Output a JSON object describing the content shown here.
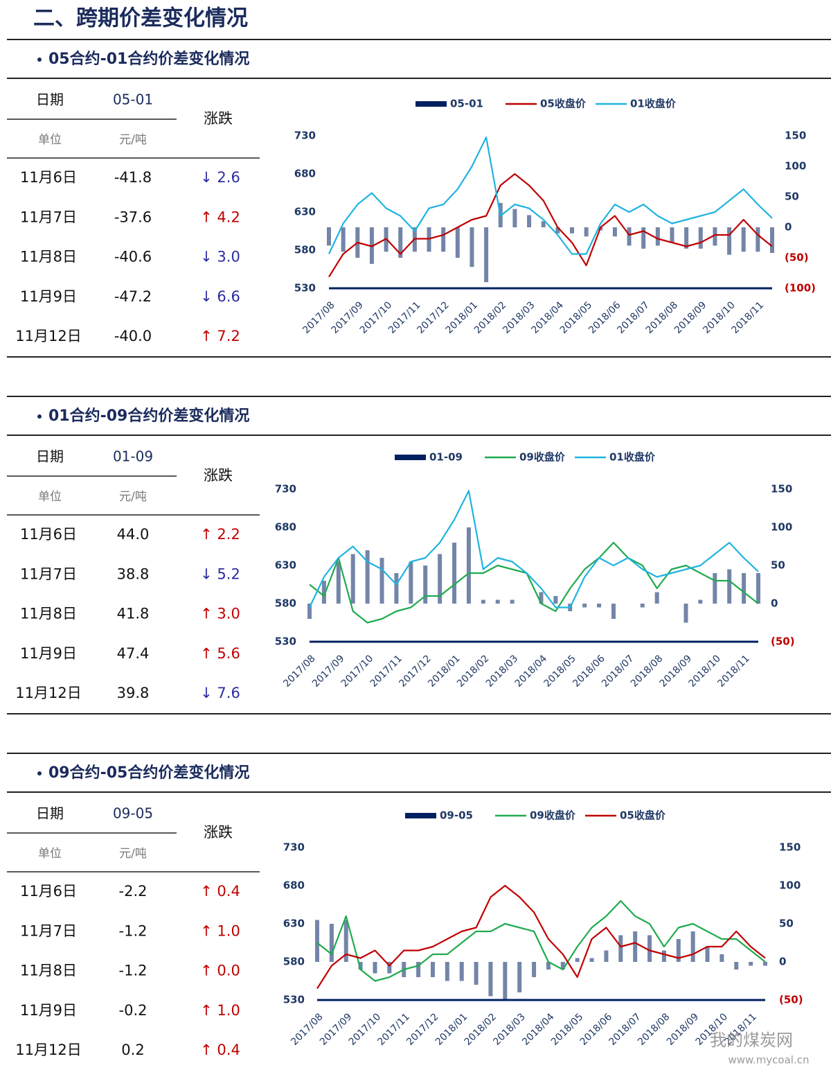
{
  "header": {
    "title": "二、跨期价差变化情况"
  },
  "sections": [
    {
      "title": "05合约-01合约价差变化情况",
      "table": {
        "header": [
          "日期",
          "05-01",
          "涨跌"
        ],
        "units": [
          "单位",
          "元/吨"
        ],
        "rows": [
          {
            "date": "11月6日",
            "value": "-41.8",
            "change": "↓ 2.6",
            "color": "#2b2ba0"
          },
          {
            "date": "11月7日",
            "value": "-37.6",
            "change": "↑ 4.2",
            "color": "#c00000"
          },
          {
            "date": "11月8日",
            "value": "-40.6",
            "change": "↓ 3.0",
            "color": "#2b2ba0"
          },
          {
            "date": "11月9日",
            "value": "-47.2",
            "change": "↓ 6.6",
            "color": "#2b2ba0"
          },
          {
            "date": "11月12日",
            "value": "-40.0",
            "change": "↑ 7.2",
            "color": "#c00000"
          }
        ]
      },
      "chart": {
        "type": "combo",
        "categories": [
          "2017/08",
          null,
          "2017/09",
          null,
          "2017/10",
          null,
          "2017/11",
          null,
          "2017/12",
          null,
          "2018/01",
          null,
          "2018/02",
          null,
          "2018/03",
          null,
          "2018/04",
          null,
          "2018/05",
          null,
          "2018/06",
          null,
          "2018/07",
          null,
          "2018/08",
          null,
          "2018/09",
          null,
          "2018/10",
          null,
          "2018/11",
          null
        ],
        "ylim": [
          530,
          730
        ],
        "yticks": [
          530,
          580,
          630,
          680,
          730
        ],
        "y2lim": [
          -100,
          150
        ],
        "y2ticks": [
          {
            "value": -100,
            "label": "(100)",
            "color": "#c00000"
          },
          {
            "value": -50,
            "label": "(50)",
            "color": "#c00000"
          },
          {
            "value": 0,
            "label": "0",
            "color": "#1f3864"
          },
          {
            "value": 50,
            "label": "50",
            "color": "#1f3864"
          },
          {
            "value": 100,
            "label": "100",
            "color": "#1f3864"
          },
          {
            "value": 150,
            "label": "150",
            "color": "#1f3864"
          }
        ],
        "series": [
          {
            "name": "05-01",
            "type": "bar",
            "axis": "y2",
            "color": "#002060",
            "values": [
              -30,
              -40,
              -50,
              -60,
              -40,
              -50,
              -40,
              -40,
              -40,
              -50,
              -65,
              -90,
              40,
              30,
              20,
              10,
              -10,
              -10,
              -15,
              -5,
              -15,
              -30,
              -35,
              -30,
              -25,
              -35,
              -35,
              -30,
              -45,
              -40,
              -40,
              -42
            ]
          },
          {
            "name": "05收盘价",
            "type": "line",
            "color": "#c00000",
            "values": [
              545,
              575,
              590,
              585,
              595,
              575,
              595,
              595,
              600,
              610,
              620,
              625,
              665,
              680,
              665,
              645,
              610,
              590,
              560,
              610,
              625,
              600,
              605,
              595,
              590,
              585,
              590,
              600,
              600,
              620,
              600,
              585
            ]
          },
          {
            "name": "01收盘价",
            "type": "line",
            "color": "#1fb3e0",
            "values": [
              575,
              615,
              640,
              655,
              635,
              625,
              605,
              635,
              640,
              660,
              690,
              728,
              625,
              640,
              635,
              620,
              600,
              575,
              575,
              615,
              640,
              630,
              640,
              625,
              615,
              620,
              625,
              630,
              645,
              660,
              640,
              622
            ]
          }
        ]
      }
    },
    {
      "title": "01合约-09合约价差变化情况",
      "table": {
        "header": [
          "日期",
          "01-09",
          "涨跌"
        ],
        "units": [
          "单位",
          "元/吨"
        ],
        "rows": [
          {
            "date": "11月6日",
            "value": "44.0",
            "change": "↑ 2.2",
            "color": "#c00000"
          },
          {
            "date": "11月7日",
            "value": "38.8",
            "change": "↓ 5.2",
            "color": "#2b2ba0"
          },
          {
            "date": "11月8日",
            "value": "41.8",
            "change": "↑ 3.0",
            "color": "#c00000"
          },
          {
            "date": "11月9日",
            "value": "47.4",
            "change": "↑ 5.6",
            "color": "#c00000"
          },
          {
            "date": "11月12日",
            "value": "39.8",
            "change": "↓ 7.6",
            "color": "#2b2ba0"
          }
        ]
      },
      "chart": {
        "type": "combo",
        "categories": [
          "2017/08",
          null,
          "2017/09",
          null,
          "2017/10",
          null,
          "2017/11",
          null,
          "2017/12",
          null,
          "2018/01",
          null,
          "2018/02",
          null,
          "2018/03",
          null,
          "2018/04",
          null,
          "2018/05",
          null,
          "2018/06",
          null,
          "2018/07",
          null,
          "2018/08",
          null,
          "2018/09",
          null,
          "2018/10",
          null,
          "2018/11",
          null
        ],
        "ylim": [
          530,
          730
        ],
        "yticks": [
          530,
          580,
          630,
          680,
          730
        ],
        "y2lim": [
          -50,
          150
        ],
        "y2ticks": [
          {
            "value": -50,
            "label": "(50)",
            "color": "#c00000"
          },
          {
            "value": 0,
            "label": "0",
            "color": "#1f3864"
          },
          {
            "value": 50,
            "label": "50",
            "color": "#1f3864"
          },
          {
            "value": 100,
            "label": "100",
            "color": "#1f3864"
          },
          {
            "value": 150,
            "label": "150",
            "color": "#1f3864"
          }
        ],
        "series": [
          {
            "name": "01-09",
            "type": "bar",
            "axis": "y2",
            "color": "#002060",
            "values": [
              -20,
              30,
              55,
              65,
              70,
              60,
              40,
              55,
              50,
              65,
              80,
              100,
              5,
              5,
              5,
              0,
              15,
              10,
              -10,
              -5,
              -5,
              -20,
              0,
              -5,
              15,
              0,
              -25,
              5,
              40,
              45,
              40,
              40
            ]
          },
          {
            "name": "09收盘价",
            "type": "line",
            "color": "#1faa4f",
            "values": [
              605,
              590,
              640,
              570,
              555,
              560,
              570,
              575,
              590,
              590,
              605,
              620,
              620,
              630,
              625,
              620,
              580,
              570,
              600,
              625,
              640,
              660,
              640,
              630,
              600,
              625,
              630,
              620,
              610,
              610,
              595,
              580
            ]
          },
          {
            "name": "01收盘价",
            "type": "line",
            "color": "#1fb3e0",
            "values": [
              575,
              615,
              640,
              655,
              635,
              625,
              605,
              635,
              640,
              660,
              690,
              728,
              625,
              640,
              635,
              620,
              600,
              575,
              575,
              615,
              640,
              630,
              640,
              625,
              615,
              620,
              625,
              630,
              645,
              660,
              640,
              622
            ]
          }
        ]
      }
    },
    {
      "title": "09合约-05合约价差变化情况",
      "table": {
        "header": [
          "日期",
          "09-05",
          "涨跌"
        ],
        "units": [
          "单位",
          "元/吨"
        ],
        "rows": [
          {
            "date": "11月6日",
            "value": "-2.2",
            "change": "↑ 0.4",
            "color": "#c00000"
          },
          {
            "date": "11月7日",
            "value": "-1.2",
            "change": "↑ 1.0",
            "color": "#c00000"
          },
          {
            "date": "11月8日",
            "value": "-1.2",
            "change": "↑ 0.0",
            "color": "#c00000"
          },
          {
            "date": "11月9日",
            "value": "-0.2",
            "change": "↑ 1.0",
            "color": "#c00000"
          },
          {
            "date": "11月12日",
            "value": "0.2",
            "change": "↑ 0.4",
            "color": "#c00000"
          }
        ]
      },
      "chart": {
        "type": "combo",
        "categories": [
          "2017/08",
          null,
          "2017/09",
          null,
          "2017/10",
          null,
          "2017/11",
          null,
          "2017/12",
          null,
          "2018/01",
          null,
          "2018/02",
          null,
          "2018/03",
          null,
          "2018/04",
          null,
          "2018/05",
          null,
          "2018/06",
          null,
          "2018/07",
          null,
          "2018/08",
          null,
          "2018/09",
          null,
          "2018/10",
          null,
          "2018/11",
          null
        ],
        "ylim": [
          530,
          730
        ],
        "yticks": [
          530,
          580,
          630,
          680,
          730
        ],
        "y2lim": [
          -50,
          150
        ],
        "y2ticks": [
          {
            "value": -50,
            "label": "(50)",
            "color": "#c00000"
          },
          {
            "value": 0,
            "label": "0",
            "color": "#1f3864"
          },
          {
            "value": 50,
            "label": "50",
            "color": "#1f3864"
          },
          {
            "value": 100,
            "label": "100",
            "color": "#1f3864"
          },
          {
            "value": 150,
            "label": "150",
            "color": "#1f3864"
          }
        ],
        "series": [
          {
            "name": "09-05",
            "type": "bar",
            "axis": "y2",
            "color": "#002060",
            "values": [
              55,
              50,
              55,
              -10,
              -15,
              -15,
              -20,
              -20,
              -20,
              -25,
              -25,
              -30,
              -45,
              -50,
              -40,
              -20,
              -10,
              -10,
              5,
              5,
              15,
              35,
              40,
              35,
              15,
              30,
              40,
              20,
              10,
              -10,
              -5,
              -5
            ]
          },
          {
            "name": "09收盘价",
            "type": "line",
            "color": "#1faa4f",
            "values": [
              605,
              590,
              640,
              570,
              555,
              560,
              570,
              575,
              590,
              590,
              605,
              620,
              620,
              630,
              625,
              620,
              580,
              570,
              600,
              625,
              640,
              660,
              640,
              630,
              600,
              625,
              630,
              620,
              610,
              610,
              595,
              580
            ]
          },
          {
            "name": "05收盘价",
            "type": "line",
            "color": "#c00000",
            "values": [
              545,
              575,
              590,
              585,
              595,
              575,
              595,
              595,
              600,
              610,
              620,
              625,
              665,
              680,
              665,
              645,
              610,
              590,
              560,
              610,
              625,
              600,
              605,
              595,
              590,
              585,
              590,
              600,
              600,
              620,
              600,
              585
            ]
          }
        ]
      }
    }
  ],
  "watermark": {
    "name": "我的煤炭网",
    "url": "www.mycoal.cn"
  }
}
